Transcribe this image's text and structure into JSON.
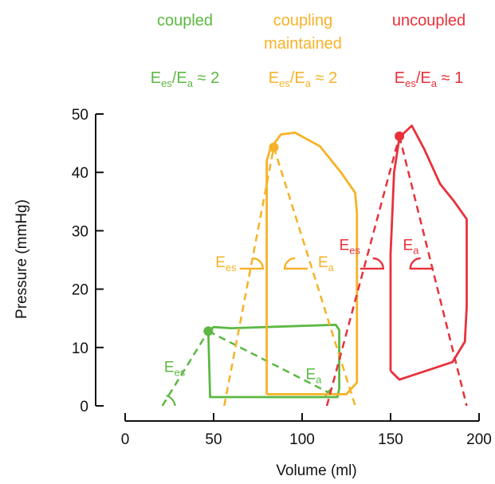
{
  "chart_data": {
    "type": "line",
    "xlabel": "Volume (ml)",
    "ylabel": "Pressure (mmHg)",
    "xlim": [
      0,
      200
    ],
    "ylim": [
      0,
      50
    ],
    "xticks": [
      "0",
      "50",
      "100",
      "150",
      "200"
    ],
    "yticks": [
      "0",
      "10",
      "20",
      "30",
      "40",
      "50"
    ],
    "grid": false,
    "headers": [
      {
        "id": "coupled",
        "label": [
          "coupled"
        ],
        "ratio": "≈ 2",
        "color": "#5cb843"
      },
      {
        "id": "maintained",
        "label": [
          "coupling",
          "maintained"
        ],
        "ratio": "≈ 2",
        "color": "#f6b227"
      },
      {
        "id": "uncoupled",
        "label": [
          "uncoupled"
        ],
        "ratio": "≈ 1",
        "color": "#e8313b"
      }
    ],
    "ratio_text": {
      "E": "E",
      "es": "es",
      "slash": "/",
      "a": "a"
    },
    "series": [
      {
        "id": "coupled",
        "color": "#5cb843",
        "loop": [
          [
            47,
            12.8
          ],
          [
            48,
            1.5
          ],
          [
            120,
            1.5
          ],
          [
            121,
            3
          ],
          [
            121,
            13
          ],
          [
            119,
            13.9
          ],
          [
            60,
            13.3
          ],
          [
            50,
            13.5
          ],
          [
            47,
            12.8
          ]
        ],
        "es_point": [
          47,
          12.8
        ],
        "ees_line": [
          [
            21,
            0
          ],
          [
            47,
            12.8
          ]
        ],
        "ea_line": [
          [
            47,
            12.8
          ],
          [
            120,
            1.5
          ]
        ],
        "ees_label": {
          "x": 22,
          "y": 5.8,
          "text": "E",
          "sub": "es"
        },
        "ea_label": {
          "x": 102,
          "y": 4.6,
          "text": "E",
          "sub": "a"
        }
      },
      {
        "id": "maintained",
        "color": "#f6b227",
        "loop": [
          [
            80,
            2
          ],
          [
            80,
            42
          ],
          [
            82,
            44
          ],
          [
            88,
            46.5
          ],
          [
            96,
            46.8
          ],
          [
            110,
            44.5
          ],
          [
            122,
            40
          ],
          [
            130,
            36.5
          ],
          [
            131,
            33
          ],
          [
            131,
            4
          ],
          [
            125,
            2
          ],
          [
            80,
            2
          ]
        ],
        "es_point": [
          84,
          44.3
        ],
        "ees_line": [
          [
            56,
            0
          ],
          [
            84,
            44.3
          ]
        ],
        "ea_line": [
          [
            84,
            44.3
          ],
          [
            130,
            0
          ]
        ],
        "ees_label": {
          "x": 51,
          "y": 23.8,
          "text": "E",
          "sub": "es"
        },
        "ea_label": {
          "x": 109,
          "y": 23.8,
          "text": "E",
          "sub": "a"
        }
      },
      {
        "id": "uncoupled",
        "color": "#e8313b",
        "loop": [
          [
            150,
            6
          ],
          [
            150,
            26
          ],
          [
            152,
            40
          ],
          [
            155,
            46
          ],
          [
            162,
            48
          ],
          [
            169,
            44
          ],
          [
            178,
            38
          ],
          [
            186,
            35
          ],
          [
            193,
            32
          ],
          [
            193,
            17
          ],
          [
            192,
            11
          ],
          [
            185,
            7.5
          ],
          [
            155,
            4.5
          ],
          [
            150,
            6
          ]
        ],
        "es_point": [
          155,
          46.2
        ],
        "ees_line": [
          [
            114,
            0
          ],
          [
            155,
            46.2
          ]
        ],
        "ea_line": [
          [
            155,
            46.2
          ],
          [
            193,
            0
          ]
        ],
        "ees_label": {
          "x": 121,
          "y": 26.7,
          "text": "E",
          "sub": "es"
        },
        "ea_label": {
          "x": 157,
          "y": 26.7,
          "text": "E",
          "sub": "a"
        }
      }
    ],
    "angle_marks": [
      {
        "id": "maintained-ees",
        "color": "#f6b227",
        "cx": 72,
        "cy": 23.5,
        "dir": "right"
      },
      {
        "id": "maintained-ea",
        "color": "#f6b227",
        "cx": 96,
        "cy": 23.5,
        "dir": "left"
      },
      {
        "id": "uncoupled-ees",
        "color": "#e8313b",
        "cx": 140,
        "cy": 23.5,
        "dir": "right"
      },
      {
        "id": "uncoupled-ea",
        "color": "#e8313b",
        "cx": 167,
        "cy": 23.5,
        "dir": "left"
      }
    ]
  }
}
